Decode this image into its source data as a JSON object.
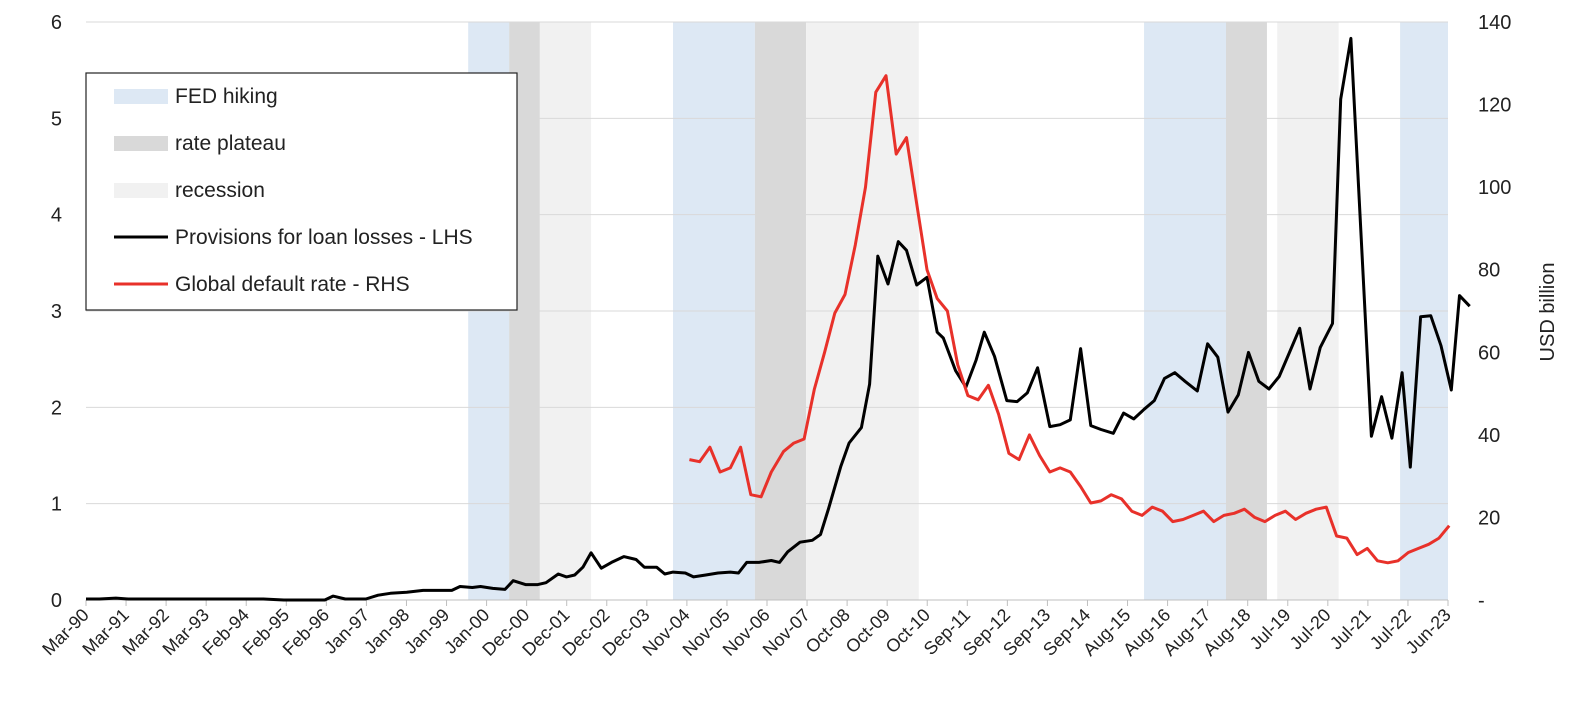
{
  "chart_data": {
    "type": "line",
    "title": "",
    "ylabel_left": "",
    "ylabel_right": "USD billion",
    "ylim_left": [
      0,
      6
    ],
    "ylim_right": [
      0,
      140
    ],
    "y_ticks_left": [
      "0",
      "1",
      "2",
      "3",
      "4",
      "5",
      "6"
    ],
    "y_ticks_right": [
      "-",
      "20",
      "40",
      "60",
      "80",
      "100",
      "120",
      "140"
    ],
    "x_ticks": [
      "Mar-90",
      "Mar-91",
      "Mar-92",
      "Mar-93",
      "Feb-94",
      "Feb-95",
      "Feb-96",
      "Jan-97",
      "Jan-98",
      "Jan-99",
      "Jan-00",
      "Dec-00",
      "Dec-01",
      "Dec-02",
      "Dec-03",
      "Nov-04",
      "Nov-05",
      "Nov-06",
      "Nov-07",
      "Oct-08",
      "Oct-09",
      "Oct-10",
      "Sep-11",
      "Sep-12",
      "Sep-13",
      "Sep-14",
      "Aug-15",
      "Aug-16",
      "Aug-17",
      "Aug-18",
      "Jul-19",
      "Jul-20",
      "Jul-21",
      "Jul-22",
      "Jun-23"
    ],
    "x_start": 1990.17,
    "x_end": 2023.42,
    "grid": true,
    "legend_position": "top-left",
    "legend": [
      {
        "label": "FED hiking",
        "kind": "band",
        "color": "#dde8f4"
      },
      {
        "label": "rate plateau",
        "kind": "band",
        "color": "#d9d9d9"
      },
      {
        "label": "recession",
        "kind": "band",
        "color": "#f1f1f1"
      },
      {
        "label": "Provisions for loan losses - LHS",
        "kind": "line",
        "color": "#000000"
      },
      {
        "label": "Global default rate - RHS",
        "kind": "line",
        "color": "#e8312a"
      }
    ],
    "bands": [
      {
        "type": "FED hiking",
        "start": 1999.5,
        "end": 2000.5
      },
      {
        "type": "rate plateau",
        "start": 2000.5,
        "end": 2001.25
      },
      {
        "type": "recession",
        "start": 2001.25,
        "end": 2002.5
      },
      {
        "type": "FED hiking",
        "start": 2004.5,
        "end": 2006.5
      },
      {
        "type": "rate plateau",
        "start": 2006.5,
        "end": 2007.75
      },
      {
        "type": "recession",
        "start": 2007.75,
        "end": 2010.5
      },
      {
        "type": "FED hiking",
        "start": 2016.0,
        "end": 2018.0
      },
      {
        "type": "rate plateau",
        "start": 2018.0,
        "end": 2019.0
      },
      {
        "type": "recession",
        "start": 2019.25,
        "end": 2020.75
      },
      {
        "type": "FED hiking",
        "start": 2022.25,
        "end": 2023.75
      }
    ],
    "series": [
      {
        "name": "Provisions for loan losses - LHS",
        "axis": "left",
        "color": "#000000",
        "points": [
          [
            1990.17,
            0.01
          ],
          [
            1990.5,
            0.01
          ],
          [
            1990.9,
            0.02
          ],
          [
            1991.2,
            0.01
          ],
          [
            1992.0,
            0.01
          ],
          [
            1993.0,
            0.01
          ],
          [
            1994.0,
            0.01
          ],
          [
            1994.5,
            0.01
          ],
          [
            1995.0,
            0.0
          ],
          [
            1996.0,
            0.0
          ],
          [
            1996.2,
            0.04
          ],
          [
            1996.5,
            0.01
          ],
          [
            1997.0,
            0.01
          ],
          [
            1997.3,
            0.05
          ],
          [
            1997.6,
            0.07
          ],
          [
            1998.0,
            0.08
          ],
          [
            1998.4,
            0.1
          ],
          [
            1998.8,
            0.1
          ],
          [
            1999.1,
            0.1
          ],
          [
            1999.3,
            0.14
          ],
          [
            1999.6,
            0.13
          ],
          [
            1999.8,
            0.14
          ],
          [
            2000.1,
            0.12
          ],
          [
            2000.4,
            0.11
          ],
          [
            2000.6,
            0.2
          ],
          [
            2000.9,
            0.16
          ],
          [
            2001.2,
            0.16
          ],
          [
            2001.4,
            0.18
          ],
          [
            2001.7,
            0.27
          ],
          [
            2001.9,
            0.24
          ],
          [
            2002.1,
            0.26
          ],
          [
            2002.3,
            0.34
          ],
          [
            2002.5,
            0.49
          ],
          [
            2002.75,
            0.33
          ],
          [
            2003.0,
            0.39
          ],
          [
            2003.3,
            0.45
          ],
          [
            2003.6,
            0.42
          ],
          [
            2003.8,
            0.34
          ],
          [
            2004.1,
            0.34
          ],
          [
            2004.3,
            0.27
          ],
          [
            2004.5,
            0.29
          ],
          [
            2004.8,
            0.28
          ],
          [
            2005.0,
            0.24
          ],
          [
            2005.3,
            0.26
          ],
          [
            2005.6,
            0.28
          ],
          [
            2005.9,
            0.29
          ],
          [
            2006.1,
            0.28
          ],
          [
            2006.3,
            0.39
          ],
          [
            2006.6,
            0.39
          ],
          [
            2006.9,
            0.41
          ],
          [
            2007.1,
            0.39
          ],
          [
            2007.3,
            0.5
          ],
          [
            2007.6,
            0.6
          ],
          [
            2007.9,
            0.62
          ],
          [
            2008.1,
            0.68
          ],
          [
            2008.3,
            0.95
          ],
          [
            2008.6,
            1.39
          ],
          [
            2008.8,
            1.63
          ],
          [
            2009.1,
            1.79
          ],
          [
            2009.3,
            2.24
          ],
          [
            2009.5,
            3.57
          ],
          [
            2009.75,
            3.28
          ],
          [
            2010.0,
            3.72
          ],
          [
            2010.2,
            3.63
          ],
          [
            2010.45,
            3.27
          ],
          [
            2010.7,
            3.35
          ],
          [
            2010.95,
            2.78
          ],
          [
            2011.1,
            2.72
          ],
          [
            2011.4,
            2.38
          ],
          [
            2011.65,
            2.21
          ],
          [
            2011.9,
            2.49
          ],
          [
            2012.1,
            2.78
          ],
          [
            2012.35,
            2.53
          ],
          [
            2012.65,
            2.07
          ],
          [
            2012.9,
            2.06
          ],
          [
            2013.15,
            2.15
          ],
          [
            2013.4,
            2.41
          ],
          [
            2013.7,
            1.8
          ],
          [
            2013.95,
            1.82
          ],
          [
            2014.2,
            1.87
          ],
          [
            2014.45,
            2.61
          ],
          [
            2014.7,
            1.81
          ],
          [
            2014.95,
            1.77
          ],
          [
            2015.25,
            1.73
          ],
          [
            2015.5,
            1.94
          ],
          [
            2015.75,
            1.88
          ],
          [
            2016.0,
            1.98
          ],
          [
            2016.25,
            2.07
          ],
          [
            2016.5,
            2.3
          ],
          [
            2016.75,
            2.36
          ],
          [
            2017.0,
            2.27
          ],
          [
            2017.3,
            2.17
          ],
          [
            2017.55,
            2.66
          ],
          [
            2017.8,
            2.52
          ],
          [
            2018.05,
            1.95
          ],
          [
            2018.3,
            2.13
          ],
          [
            2018.55,
            2.57
          ],
          [
            2018.8,
            2.27
          ],
          [
            2019.05,
            2.19
          ],
          [
            2019.3,
            2.32
          ],
          [
            2019.55,
            2.57
          ],
          [
            2019.8,
            2.82
          ],
          [
            2020.05,
            2.19
          ],
          [
            2020.3,
            2.62
          ],
          [
            2020.6,
            2.87
          ],
          [
            2020.8,
            5.2
          ],
          [
            2021.05,
            5.83
          ],
          [
            2021.3,
            3.76
          ],
          [
            2021.55,
            1.7
          ],
          [
            2021.8,
            2.11
          ],
          [
            2022.05,
            1.68
          ],
          [
            2022.3,
            2.36
          ],
          [
            2022.5,
            1.38
          ],
          [
            2022.75,
            2.94
          ],
          [
            2023.0,
            2.95
          ],
          [
            2023.25,
            2.64
          ],
          [
            2023.5,
            2.18
          ],
          [
            2023.7,
            3.16
          ],
          [
            2023.95,
            3.05
          ]
        ]
      },
      {
        "name": "Global default rate - RHS",
        "axis": "right",
        "color": "#e8312a",
        "points": [
          [
            2004.9,
            34
          ],
          [
            2005.15,
            33.5
          ],
          [
            2005.4,
            37
          ],
          [
            2005.65,
            31
          ],
          [
            2005.9,
            32
          ],
          [
            2006.15,
            37
          ],
          [
            2006.4,
            25.5
          ],
          [
            2006.65,
            25
          ],
          [
            2006.9,
            31
          ],
          [
            2007.2,
            36
          ],
          [
            2007.45,
            38
          ],
          [
            2007.7,
            39
          ],
          [
            2007.95,
            51
          ],
          [
            2008.2,
            60
          ],
          [
            2008.45,
            69.5
          ],
          [
            2008.7,
            74
          ],
          [
            2008.95,
            86
          ],
          [
            2009.2,
            100
          ],
          [
            2009.45,
            123
          ],
          [
            2009.7,
            127
          ],
          [
            2009.95,
            108
          ],
          [
            2010.2,
            112
          ],
          [
            2010.45,
            96
          ],
          [
            2010.7,
            80
          ],
          [
            2010.95,
            73
          ],
          [
            2011.2,
            70
          ],
          [
            2011.45,
            57
          ],
          [
            2011.7,
            49.5
          ],
          [
            2011.95,
            48.5
          ],
          [
            2012.2,
            52
          ],
          [
            2012.45,
            45
          ],
          [
            2012.7,
            35.5
          ],
          [
            2012.95,
            34
          ],
          [
            2013.2,
            40
          ],
          [
            2013.45,
            35
          ],
          [
            2013.7,
            31
          ],
          [
            2013.95,
            32
          ],
          [
            2014.2,
            31
          ],
          [
            2014.45,
            27.5
          ],
          [
            2014.7,
            23.5
          ],
          [
            2014.95,
            24
          ],
          [
            2015.2,
            25.5
          ],
          [
            2015.45,
            24.5
          ],
          [
            2015.7,
            21.5
          ],
          [
            2015.95,
            20.5
          ],
          [
            2016.2,
            22.5
          ],
          [
            2016.45,
            21.5
          ],
          [
            2016.7,
            19
          ],
          [
            2016.95,
            19.5
          ],
          [
            2017.2,
            20.5
          ],
          [
            2017.45,
            21.5
          ],
          [
            2017.7,
            19
          ],
          [
            2017.95,
            20.5
          ],
          [
            2018.2,
            21
          ],
          [
            2018.45,
            22
          ],
          [
            2018.7,
            20
          ],
          [
            2018.95,
            19
          ],
          [
            2019.2,
            20.5
          ],
          [
            2019.45,
            21.5
          ],
          [
            2019.7,
            19.5
          ],
          [
            2019.95,
            21
          ],
          [
            2020.2,
            22
          ],
          [
            2020.45,
            22.5
          ],
          [
            2020.7,
            15.5
          ],
          [
            2020.95,
            15
          ],
          [
            2021.2,
            11
          ],
          [
            2021.45,
            12.5
          ],
          [
            2021.7,
            9.5
          ],
          [
            2021.95,
            9
          ],
          [
            2022.2,
            9.5
          ],
          [
            2022.45,
            11.5
          ],
          [
            2022.7,
            12.5
          ],
          [
            2022.95,
            13.5
          ],
          [
            2023.2,
            15
          ],
          [
            2023.45,
            18
          ]
        ]
      }
    ]
  }
}
